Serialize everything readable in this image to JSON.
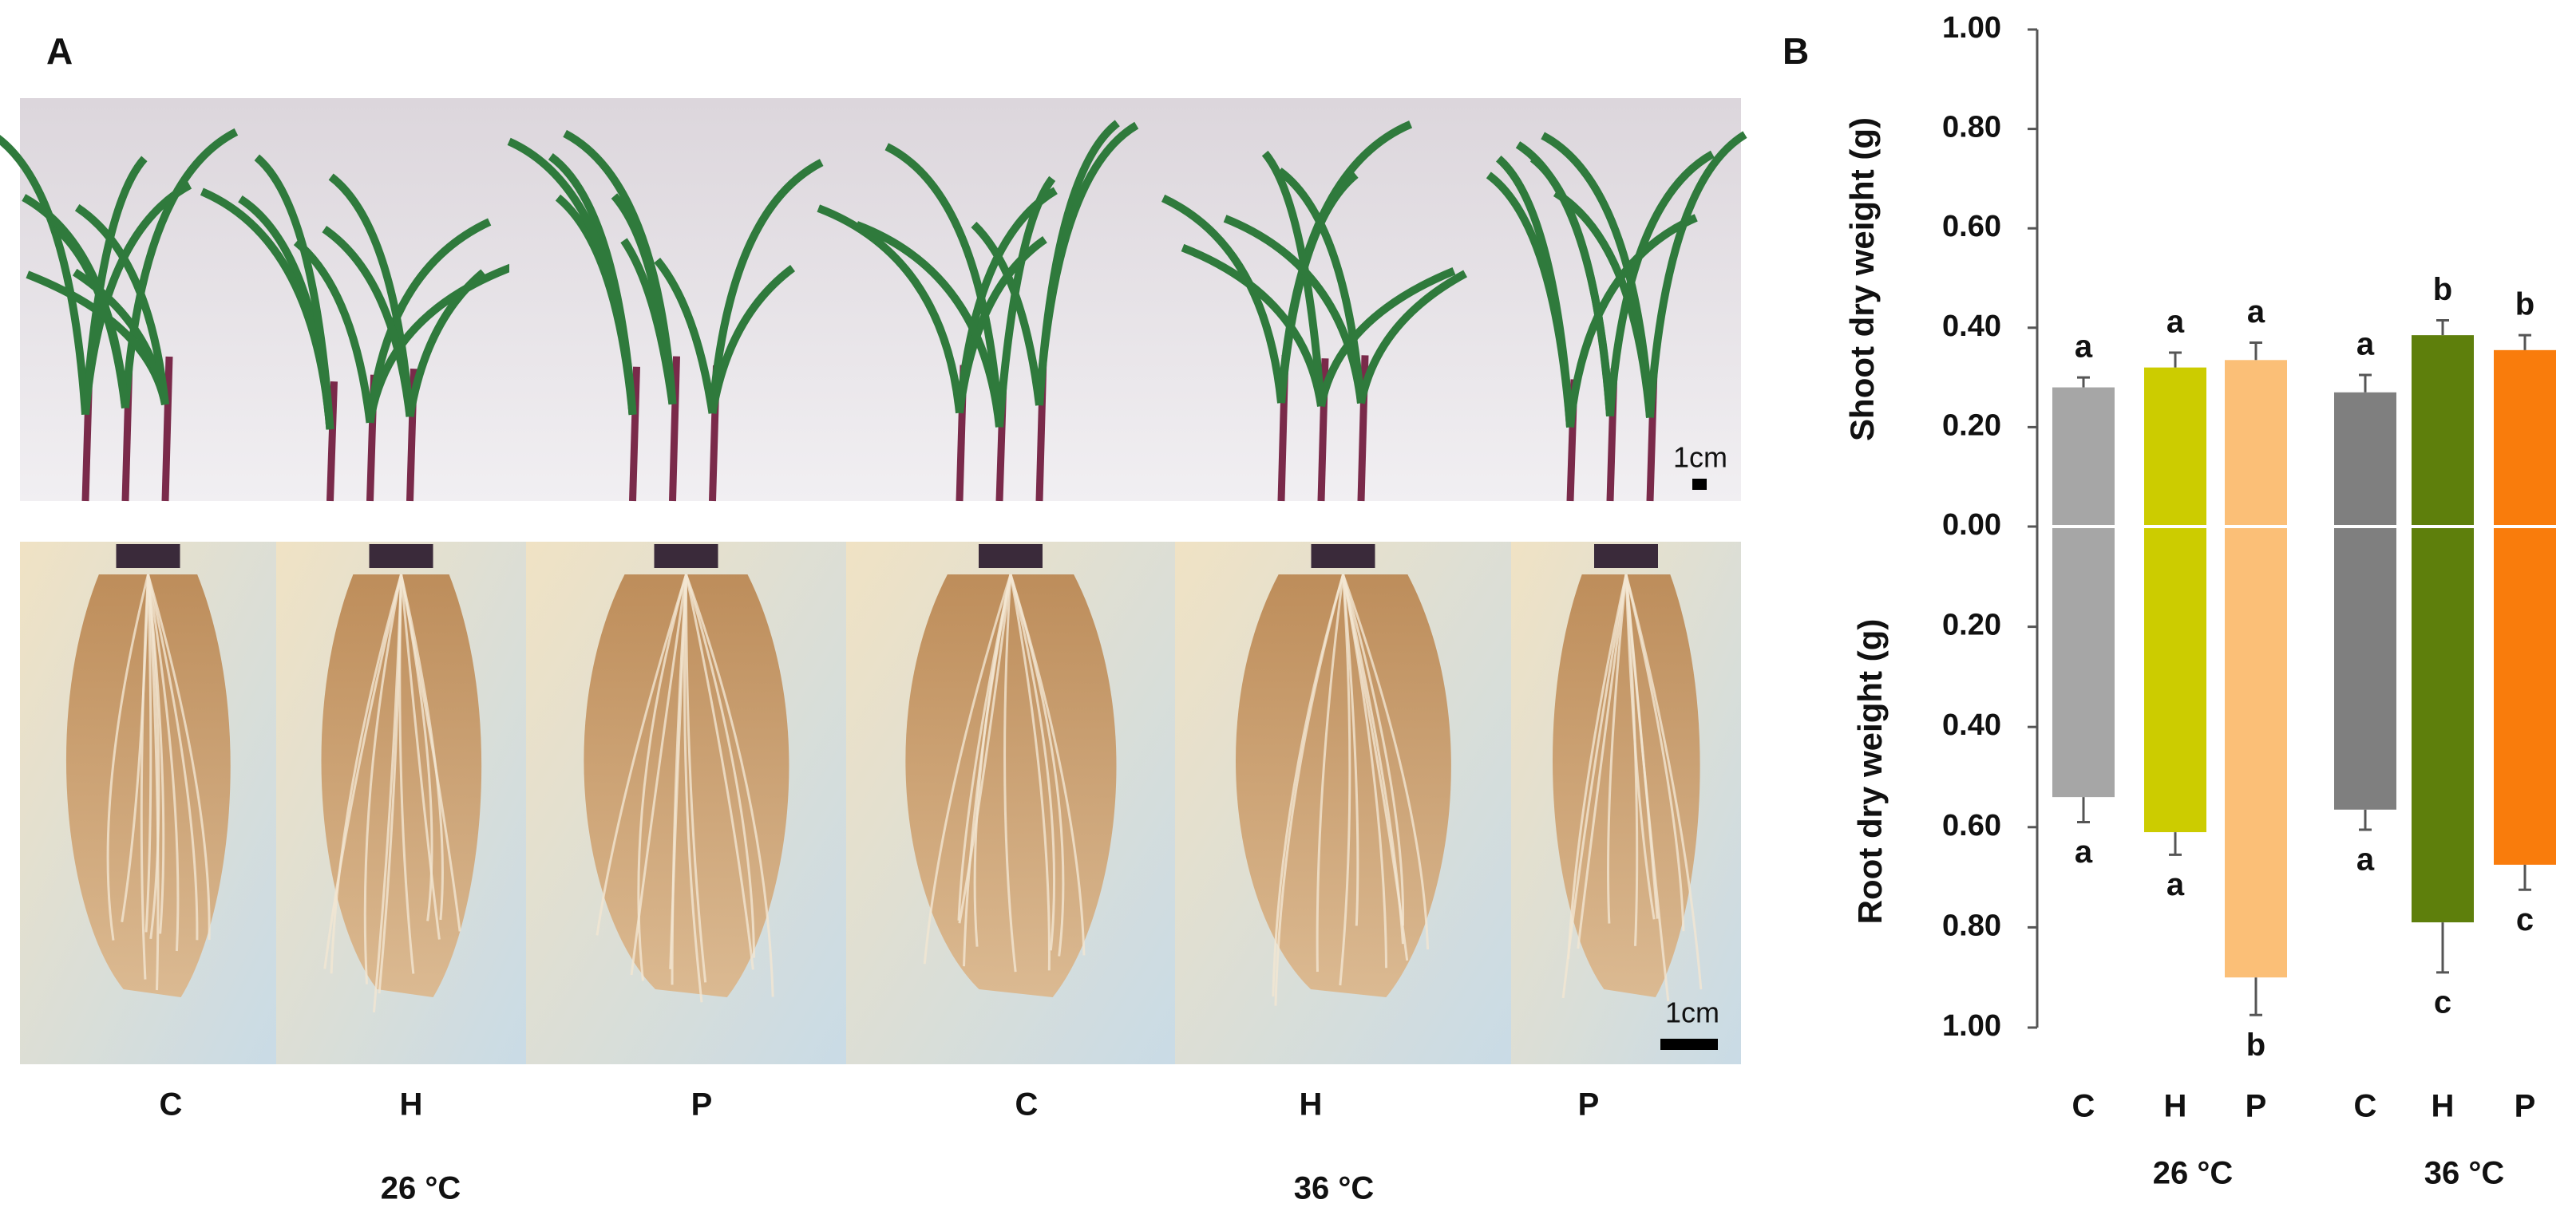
{
  "panel_a": {
    "label": "A",
    "scale_bars": [
      "1cm",
      "1cm"
    ],
    "categories": [
      "C",
      "H",
      "P",
      "C",
      "H",
      "P"
    ],
    "groups": [
      "26 °C",
      "36 °C"
    ]
  },
  "chart_data": {
    "type": "mirrored-bar",
    "label": "B",
    "categories": [
      "C",
      "H",
      "P",
      "C",
      "H",
      "P"
    ],
    "groups": [
      "26 °C",
      "36 °C"
    ],
    "colors": [
      "#a6a6a6",
      "#cccc00",
      "#fbbf77",
      "#7f7f7f",
      "#5e7f0c",
      "#f97c0c"
    ],
    "shoot": {
      "axis_label": "Shoot dry weight (g)",
      "values": [
        0.28,
        0.32,
        0.335,
        0.27,
        0.385,
        0.355
      ],
      "errors": [
        0.02,
        0.03,
        0.035,
        0.035,
        0.03,
        0.03
      ],
      "letters": [
        "a",
        "a",
        "a",
        "a",
        "b",
        "b"
      ],
      "ylim": [
        0,
        1
      ],
      "yticks": [
        {
          "value": 0,
          "label": "0.00"
        },
        {
          "value": 0.2,
          "label": "0.20"
        },
        {
          "value": 0.4,
          "label": "0.40"
        },
        {
          "value": 0.6,
          "label": "0.60"
        },
        {
          "value": 0.8,
          "label": "0.80"
        },
        {
          "value": 1,
          "label": "1.00"
        }
      ]
    },
    "root": {
      "axis_label": "Root dry weight (g)",
      "values": [
        0.54,
        0.61,
        0.9,
        0.565,
        0.79,
        0.675
      ],
      "errors": [
        0.05,
        0.045,
        0.075,
        0.04,
        0.1,
        0.05
      ],
      "letters": [
        "a",
        "a",
        "b",
        "a",
        "c",
        "c"
      ],
      "ylim": [
        0,
        1
      ],
      "yticks": [
        {
          "value": 0.2,
          "label": "0.20"
        },
        {
          "value": 0.4,
          "label": "0.40"
        },
        {
          "value": 0.6,
          "label": "0.60"
        },
        {
          "value": 0.8,
          "label": "0.80"
        },
        {
          "value": 1,
          "label": "1.00"
        }
      ]
    }
  }
}
